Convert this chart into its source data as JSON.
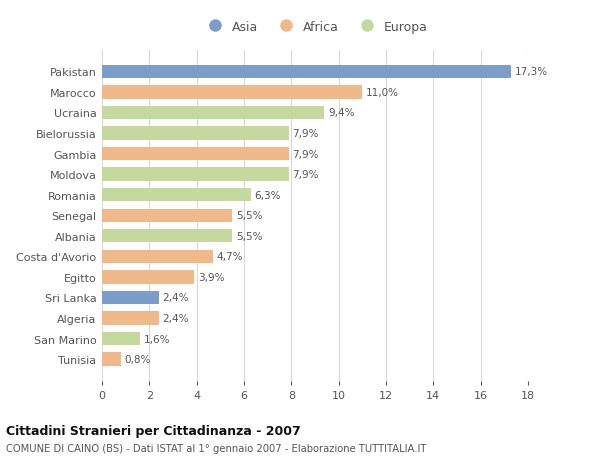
{
  "countries": [
    "Pakistan",
    "Marocco",
    "Ucraina",
    "Bielorussia",
    "Gambia",
    "Moldova",
    "Romania",
    "Senegal",
    "Albania",
    "Costa d'Avorio",
    "Egitto",
    "Sri Lanka",
    "Algeria",
    "San Marino",
    "Tunisia"
  ],
  "values": [
    17.3,
    11.0,
    9.4,
    7.9,
    7.9,
    7.9,
    6.3,
    5.5,
    5.5,
    4.7,
    3.9,
    2.4,
    2.4,
    1.6,
    0.8
  ],
  "labels": [
    "17,3%",
    "11,0%",
    "9,4%",
    "7,9%",
    "7,9%",
    "7,9%",
    "6,3%",
    "5,5%",
    "5,5%",
    "4,7%",
    "3,9%",
    "2,4%",
    "2,4%",
    "1,6%",
    "0,8%"
  ],
  "continents": [
    "Asia",
    "Africa",
    "Europa",
    "Europa",
    "Africa",
    "Europa",
    "Europa",
    "Africa",
    "Europa",
    "Africa",
    "Africa",
    "Asia",
    "Africa",
    "Europa",
    "Africa"
  ],
  "colors": {
    "Asia": "#7b9dc9",
    "Africa": "#f0b98a",
    "Europa": "#c5d99e"
  },
  "xlim": [
    0,
    18
  ],
  "xticks": [
    0,
    2,
    4,
    6,
    8,
    10,
    12,
    14,
    16,
    18
  ],
  "title": "Cittadini Stranieri per Cittadinanza - 2007",
  "subtitle": "COMUNE DI CAINO (BS) - Dati ISTAT al 1° gennaio 2007 - Elaborazione TUTTITALIA.IT",
  "background_color": "#ffffff",
  "grid_color": "#d8d8d8"
}
